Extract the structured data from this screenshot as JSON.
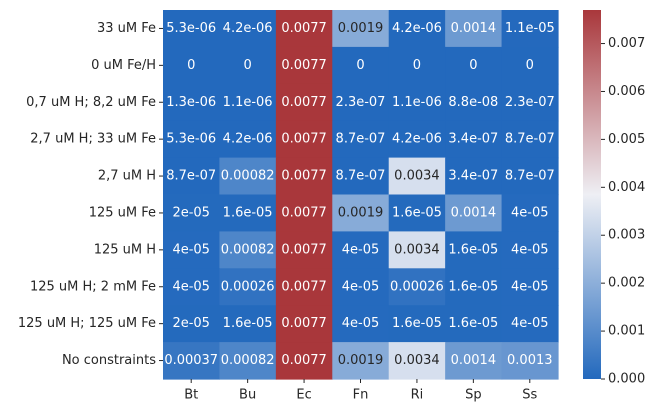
{
  "chart_data": {
    "type": "heatmap",
    "title": "",
    "xlabel": "",
    "ylabel": "",
    "x_categories": [
      "Bt",
      "Bu",
      "Ec",
      "Fn",
      "Ri",
      "Sp",
      "Ss"
    ],
    "y_categories": [
      "33 uM Fe",
      "0 uM Fe/H",
      "0,7 uM H; 8,2 uM Fe",
      "2,7 uM H; 33 uM Fe",
      "2,7 uM H",
      "125 uM Fe",
      "125 uM H",
      "125 uM H; 2 mM Fe",
      "125 uM H; 125 uM Fe",
      "No constraints"
    ],
    "values": [
      [
        5.3e-06,
        4.2e-06,
        0.0077,
        0.0019,
        4.2e-06,
        0.0014,
        1.1e-05
      ],
      [
        0,
        0,
        0.0077,
        0,
        0,
        0,
        0
      ],
      [
        1.3e-06,
        1.1e-06,
        0.0077,
        2.3e-07,
        1.1e-06,
        8.8e-08,
        2.3e-07
      ],
      [
        5.3e-06,
        4.2e-06,
        0.0077,
        8.7e-07,
        4.2e-06,
        3.4e-07,
        8.7e-07
      ],
      [
        8.7e-07,
        0.00082,
        0.0077,
        8.7e-07,
        0.0034,
        3.4e-07,
        8.7e-07
      ],
      [
        2e-05,
        1.6e-05,
        0.0077,
        0.0019,
        1.6e-05,
        0.0014,
        4e-05
      ],
      [
        4e-05,
        0.00082,
        0.0077,
        4e-05,
        0.0034,
        1.6e-05,
        4e-05
      ],
      [
        4e-05,
        0.00026,
        0.0077,
        4e-05,
        0.00026,
        1.6e-05,
        4e-05
      ],
      [
        2e-05,
        1.6e-05,
        0.0077,
        4e-05,
        1.6e-05,
        1.6e-05,
        4e-05
      ],
      [
        0.00037,
        0.00082,
        0.0077,
        0.0019,
        0.0034,
        0.0014,
        0.0013
      ]
    ],
    "cell_labels": [
      [
        "5.3e-06",
        "4.2e-06",
        "0.0077",
        "0.0019",
        "4.2e-06",
        "0.0014",
        "1.1e-05"
      ],
      [
        "0",
        "0",
        "0.0077",
        "0",
        "0",
        "0",
        "0"
      ],
      [
        "1.3e-06",
        "1.1e-06",
        "0.0077",
        "2.3e-07",
        "1.1e-06",
        "8.8e-08",
        "2.3e-07"
      ],
      [
        "5.3e-06",
        "4.2e-06",
        "0.0077",
        "8.7e-07",
        "4.2e-06",
        "3.4e-07",
        "8.7e-07"
      ],
      [
        "8.7e-07",
        "0.00082",
        "0.0077",
        "8.7e-07",
        "0.0034",
        "3.4e-07",
        "8.7e-07"
      ],
      [
        "2e-05",
        "1.6e-05",
        "0.0077",
        "0.0019",
        "1.6e-05",
        "0.0014",
        "4e-05"
      ],
      [
        "4e-05",
        "0.00082",
        "0.0077",
        "4e-05",
        "0.0034",
        "1.6e-05",
        "4e-05"
      ],
      [
        "4e-05",
        "0.00026",
        "0.0077",
        "4e-05",
        "0.00026",
        "1.6e-05",
        "4e-05"
      ],
      [
        "2e-05",
        "1.6e-05",
        "0.0077",
        "4e-05",
        "1.6e-05",
        "1.6e-05",
        "4e-05"
      ],
      [
        "0.00037",
        "0.00082",
        "0.0077",
        "0.0019",
        "0.0034",
        "0.0014",
        "0.0013"
      ]
    ],
    "colorbar": {
      "range": [
        0,
        0.0077
      ],
      "ticks": [
        0,
        0.001,
        0.002,
        0.003,
        0.004,
        0.005,
        0.006,
        0.007
      ],
      "tick_labels": [
        "0.000",
        "0.001",
        "0.002",
        "0.003",
        "0.004",
        "0.005",
        "0.006",
        "0.007"
      ]
    },
    "colormap": {
      "name": "vlag",
      "low": "#2369bd",
      "mid": "#eeeff4",
      "high": "#a9373b"
    },
    "grid": false,
    "legend": "colorbar-right"
  }
}
